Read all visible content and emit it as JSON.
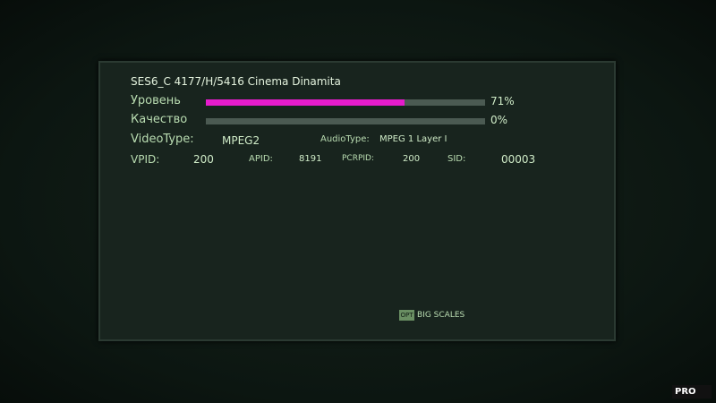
{
  "header": {
    "title": "SES6_C 4177/H/5416 Cinema Dinamita"
  },
  "signals": {
    "xlim": [
      0,
      100
    ],
    "color": "#e61ccc",
    "track_color": "#4b5a52",
    "items": [
      {
        "label": "Уровень",
        "value": 71,
        "value_label": "71%"
      },
      {
        "label": "Качество",
        "value": 0,
        "value_label": "0%"
      }
    ]
  },
  "types": [
    {
      "label": "VideoType:",
      "value": "MPEG2"
    },
    {
      "label": "AudioType:",
      "value": "MPEG 1 Layer I"
    }
  ],
  "pids": [
    {
      "label": "VPID:",
      "value": 200
    },
    {
      "label": "APID:",
      "value": 8191
    },
    {
      "label": "PCRPID:",
      "value": 200
    },
    {
      "label": "SID:",
      "value": "00003"
    }
  ],
  "footer": {
    "key": "OPT",
    "label": "BIG SCALES"
  },
  "watermark": "PRO"
}
